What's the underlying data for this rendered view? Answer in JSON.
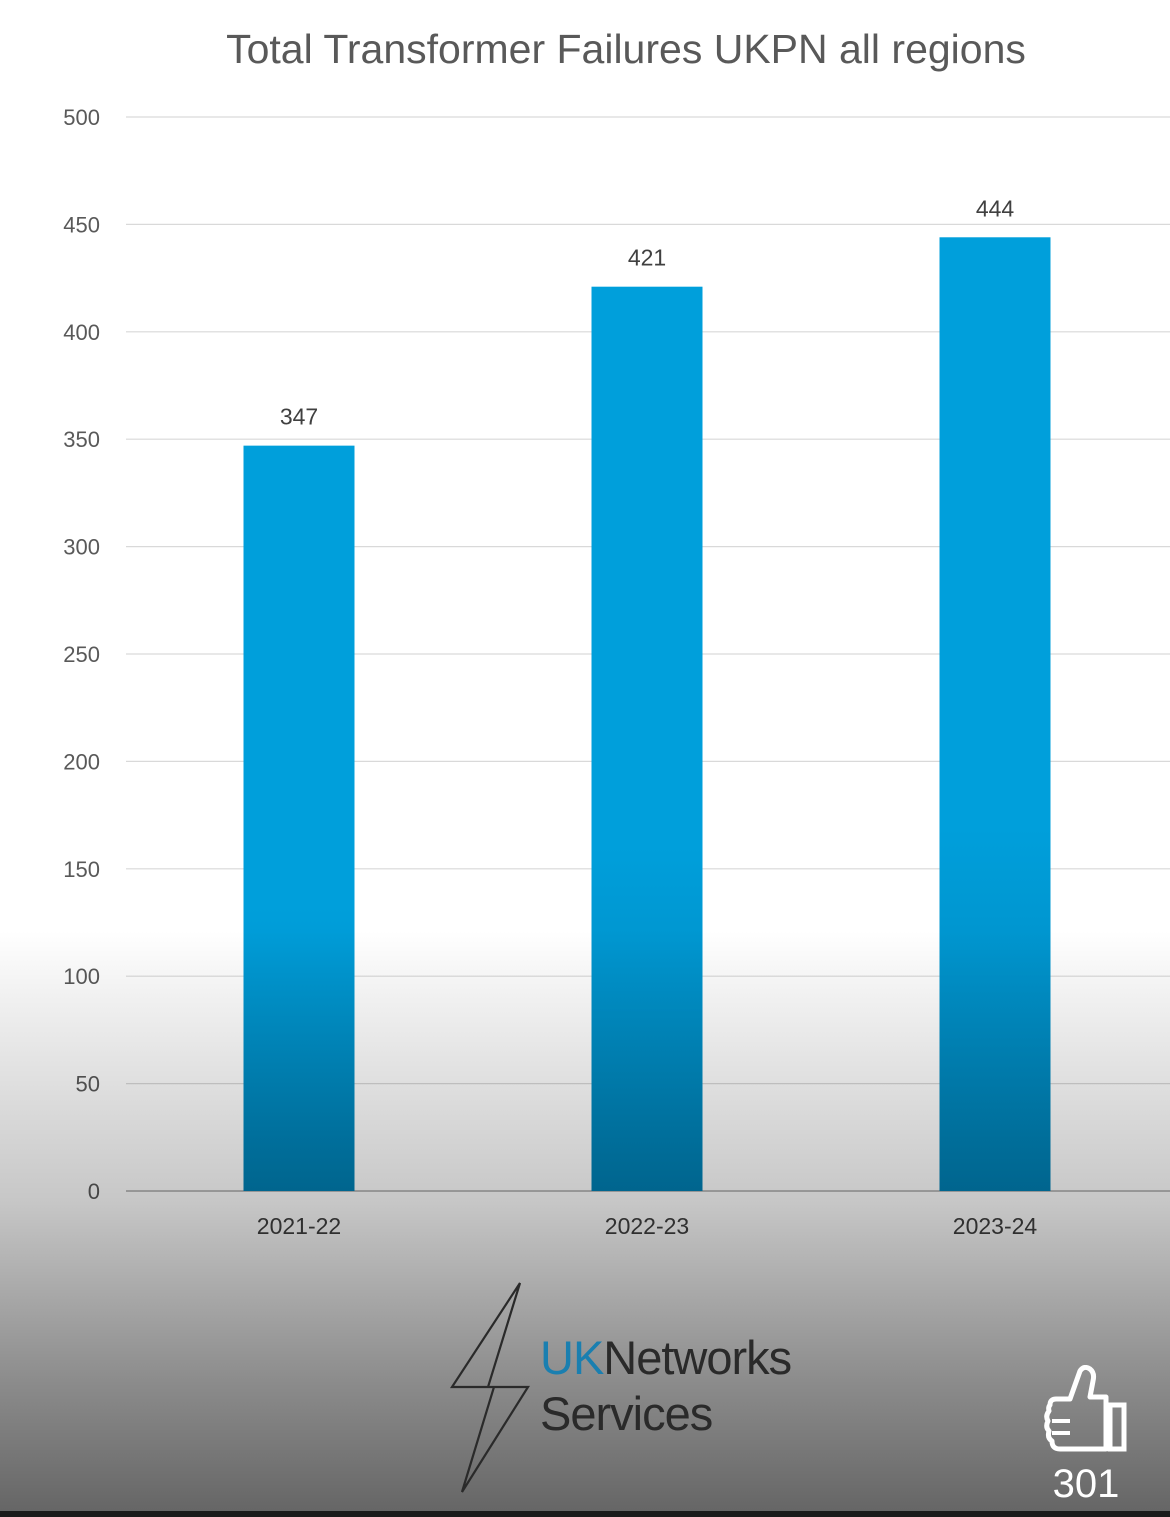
{
  "chart_data": {
    "type": "bar",
    "title": "Total Transformer Failures UKPN all regions",
    "categories": [
      "2021-22",
      "2022-23",
      "2023-24"
    ],
    "values": [
      347,
      421,
      444
    ],
    "data_labels": [
      "347",
      "421",
      "444"
    ],
    "ylim": [
      0,
      500
    ],
    "yticks": [
      0,
      50,
      100,
      150,
      200,
      250,
      300,
      350,
      400,
      450,
      500
    ],
    "grid": true,
    "legend": "none",
    "bar_color": "#009fdb",
    "bar_color_dark": "#0080b4"
  },
  "brand": {
    "name_part1": "UK",
    "name_part2": "Networks",
    "name_part3": "Services",
    "accent_color": "#1a7fb0",
    "icon": "lightning-bolt-icon"
  },
  "reaction": {
    "icon": "thumbs-up-icon",
    "count": "301"
  }
}
